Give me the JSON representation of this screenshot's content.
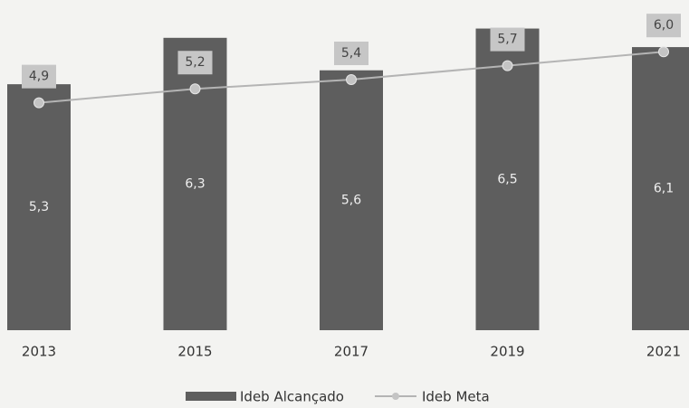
{
  "chart_data": {
    "type": "bar",
    "categories": [
      "2013",
      "2015",
      "2017",
      "2019",
      "2021"
    ],
    "series": [
      {
        "name": "Ideb Alcançado",
        "type": "bar",
        "color": "#5e5e5e",
        "values": [
          5.3,
          6.3,
          5.6,
          6.5,
          6.1
        ],
        "value_labels": [
          "5,3",
          "6,3",
          "5,6",
          "6,5",
          "6,1"
        ]
      },
      {
        "name": "Ideb Meta",
        "type": "line",
        "color": "#b4b4b4",
        "values": [
          4.9,
          5.2,
          5.4,
          5.7,
          6.0
        ],
        "value_labels": [
          "4,9",
          "5,2",
          "5,4",
          "5,7",
          "6,0"
        ]
      }
    ]
  }
}
